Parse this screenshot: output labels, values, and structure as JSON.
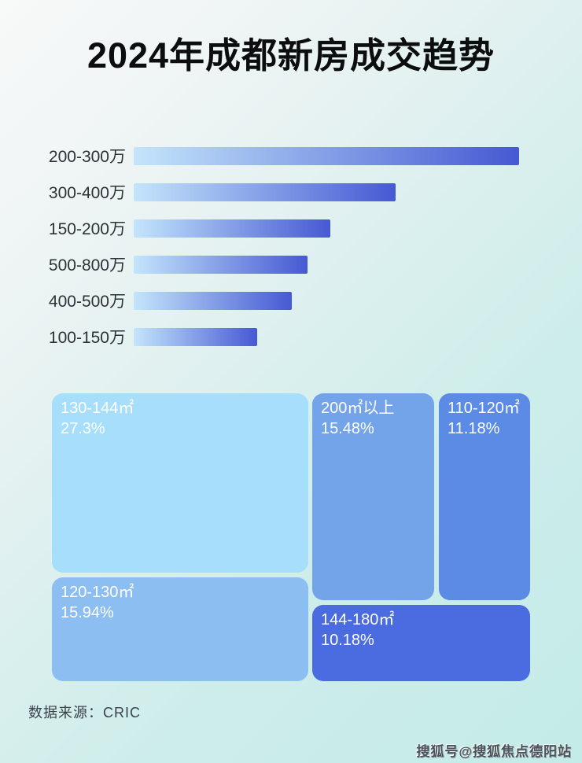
{
  "page": {
    "title": "2024年成都新房成交趋势",
    "source_label": "数据来源：CRIC",
    "watermark": "搜狐号@搜狐焦点德阳站"
  },
  "colors": {
    "bar_gradient_start": "#c4e5fb",
    "bar_gradient_end": "#4659d3",
    "title_text": "#0c0d0e",
    "bar_label_text": "#2d3237",
    "tile_text": "#ffffff",
    "tile_130_144": "#a7defb",
    "tile_120_130": "#8dbef1",
    "tile_200_plus": "#73a4e9",
    "tile_110_120": "#5c8be5",
    "tile_144_180": "#4a6ce0",
    "background_start": "#f8f9f9",
    "background_end": "#c4ebe8"
  },
  "treemap": {
    "tiles": [
      {
        "label": "130-144㎡",
        "percent": "27.3%"
      },
      {
        "label": "120-130㎡",
        "percent": "15.94%"
      },
      {
        "label": "200㎡以上",
        "percent": "15.48%"
      },
      {
        "label": "110-120㎡",
        "percent": "11.18%"
      },
      {
        "label": "144-180㎡",
        "percent": "10.18%"
      }
    ]
  },
  "chart_data": [
    {
      "type": "bar",
      "orientation": "horizontal",
      "title": "2024年成都新房成交趋势",
      "categories": [
        "200-300万",
        "300-400万",
        "150-200万",
        "500-800万",
        "400-500万",
        "100-150万"
      ],
      "values": [
        100,
        68,
        51,
        45,
        41,
        32
      ],
      "value_note": "no numeric axis shown in image; values are bar lengths as percent of the longest bar",
      "xlabel": "",
      "ylabel": "",
      "grid": false,
      "legend": "none",
      "bar_color": "gradient light-blue to royal-blue"
    },
    {
      "type": "treemap",
      "title": "",
      "categories": [
        "130-144㎡",
        "120-130㎡",
        "200㎡以上",
        "110-120㎡",
        "144-180㎡"
      ],
      "values": [
        27.3,
        15.94,
        15.48,
        11.18,
        10.18
      ],
      "value_unit": "percent",
      "labels_shown": true
    }
  ]
}
